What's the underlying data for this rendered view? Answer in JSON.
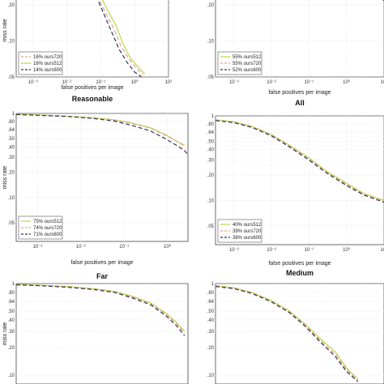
{
  "chart_data": [
    {
      "type": "line",
      "title": "Reasonable",
      "xlabel": "false positives per image",
      "ylabel": "miss rate",
      "xscale": "log",
      "yscale": "log",
      "xlim": [
        0.00032,
        10
      ],
      "ylim": [
        0.05,
        0.3
      ],
      "x_ticks": [
        "10⁻³",
        "10⁻²",
        "10⁻¹",
        "10⁰",
        "10¹"
      ],
      "x_tick_values": [
        0.001,
        0.01,
        0.1,
        1,
        10
      ],
      "y_ticks": [
        ".20",
        ".10",
        ".05"
      ],
      "y_tick_values": [
        0.2,
        0.1,
        0.05
      ],
      "ylabel_visible": true,
      "legend_position": "bottom-left",
      "series": [
        {
          "name": "16% ours720",
          "color": "#e8a090",
          "dash": "5,3",
          "x": [
            0.055,
            0.09,
            0.15,
            0.25,
            0.4,
            0.7,
            1.2,
            1.8
          ],
          "y": [
            0.3,
            0.22,
            0.165,
            0.125,
            0.09,
            0.07,
            0.058,
            0.052
          ]
        },
        {
          "name": "16% ours512",
          "color": "#b8d84a",
          "dash": "none",
          "x": [
            0.06,
            0.1,
            0.16,
            0.28,
            0.45,
            0.75,
            1.3,
            2.0
          ],
          "y": [
            0.3,
            0.235,
            0.18,
            0.135,
            0.095,
            0.072,
            0.06,
            0.053
          ]
        },
        {
          "name": "14% ours600",
          "color": "#333355",
          "dash": "5,3",
          "x": [
            0.055,
            0.085,
            0.14,
            0.22,
            0.35,
            0.6,
            1.0,
            1.6
          ],
          "y": [
            0.3,
            0.215,
            0.155,
            0.115,
            0.085,
            0.066,
            0.055,
            0.05
          ]
        }
      ]
    },
    {
      "type": "line",
      "title": "All",
      "xlabel": "false positives per image",
      "ylabel": "miss rate",
      "xscale": "log",
      "yscale": "log",
      "xlim": [
        0.00032,
        10
      ],
      "ylim": [
        0.05,
        0.3
      ],
      "x_ticks": [
        "10⁻³",
        "10⁻²",
        "10⁻¹",
        "10⁰",
        "10¹"
      ],
      "x_tick_values": [
        0.001,
        0.01,
        0.1,
        1,
        10
      ],
      "y_ticks": [
        ".20",
        ".10",
        ".05"
      ],
      "y_tick_values": [
        0.2,
        0.1,
        0.05
      ],
      "ylabel_visible": false,
      "legend_position": "bottom-left",
      "series": [
        {
          "name": "55% ours512",
          "color": "#b8d84a",
          "dash": "none",
          "x": [
            2.0,
            3.5,
            6.0,
            10.0
          ],
          "y": [
            0.3,
            0.27,
            0.245,
            0.225
          ]
        },
        {
          "name": "55% ours720",
          "color": "#e8a090",
          "dash": "5,3",
          "x": [
            2.1,
            3.6,
            6.2,
            10.0
          ],
          "y": [
            0.3,
            0.268,
            0.242,
            0.222
          ]
        },
        {
          "name": "52% ours600",
          "color": "#333355",
          "dash": "5,3",
          "x": [
            2.2,
            3.8,
            6.5,
            10.0
          ],
          "y": [
            0.3,
            0.265,
            0.238,
            0.218
          ]
        }
      ]
    },
    {
      "type": "line",
      "title": "Far",
      "xlabel": "false positives per image",
      "ylabel": "miss rate",
      "xscale": "log",
      "yscale": "log",
      "xlim": [
        0.00032,
        3
      ],
      "ylim": [
        0.03,
        1.0
      ],
      "x_ticks": [
        "10⁻³",
        "10⁻²",
        "10⁻¹",
        "10⁰"
      ],
      "x_tick_values": [
        0.001,
        0.01,
        0.1,
        1
      ],
      "y_ticks": [
        "1",
        ".80",
        ".64",
        ".50",
        ".40",
        ".30",
        ".20",
        ".10",
        ".05"
      ],
      "y_tick_values": [
        1,
        0.8,
        0.64,
        0.5,
        0.4,
        0.3,
        0.2,
        0.1,
        0.05
      ],
      "ylabel_visible": true,
      "legend_position": "bottom-left",
      "series": [
        {
          "name": "75% ours512",
          "color": "#b8d84a",
          "dash": "none",
          "x": [
            0.00032,
            0.001,
            0.005,
            0.02,
            0.06,
            0.15,
            0.4,
            0.9,
            1.6,
            2.5
          ],
          "y": [
            0.98,
            0.96,
            0.93,
            0.89,
            0.84,
            0.77,
            0.68,
            0.56,
            0.47,
            0.42
          ]
        },
        {
          "name": "74% ours720",
          "color": "#e8a090",
          "dash": "5,3",
          "x": [
            0.00032,
            0.001,
            0.005,
            0.02,
            0.06,
            0.15,
            0.4,
            0.9,
            1.6,
            2.5
          ],
          "y": [
            0.97,
            0.955,
            0.925,
            0.88,
            0.83,
            0.76,
            0.67,
            0.55,
            0.47,
            0.41
          ]
        },
        {
          "name": "71% ours600",
          "color": "#333355",
          "dash": "5,3",
          "x": [
            0.00032,
            0.001,
            0.005,
            0.02,
            0.06,
            0.15,
            0.4,
            0.9,
            1.6,
            2.5,
            3.0
          ],
          "y": [
            0.97,
            0.95,
            0.92,
            0.87,
            0.81,
            0.72,
            0.62,
            0.5,
            0.42,
            0.36,
            0.32
          ]
        }
      ]
    },
    {
      "type": "line",
      "title": "Medium",
      "xlabel": "false positives per image",
      "ylabel": "miss rate",
      "xscale": "log",
      "yscale": "log",
      "xlim": [
        0.00032,
        10
      ],
      "ylim": [
        0.03,
        1.0
      ],
      "x_ticks": [
        "10⁻³",
        "10⁻²",
        "10⁻¹",
        "10⁰",
        "10¹"
      ],
      "x_tick_values": [
        0.001,
        0.01,
        0.1,
        1,
        10
      ],
      "y_ticks": [
        "1",
        ".80",
        ".64",
        ".50",
        ".40",
        ".30",
        ".20",
        ".10",
        ".05"
      ],
      "y_tick_values": [
        1,
        0.8,
        0.64,
        0.5,
        0.4,
        0.3,
        0.2,
        0.1,
        0.05
      ],
      "ylabel_visible": false,
      "legend_position": "bottom-left",
      "series": [
        {
          "name": "40% ours512",
          "color": "#b8d84a",
          "dash": "none",
          "x": [
            0.00032,
            0.001,
            0.003,
            0.01,
            0.03,
            0.1,
            0.3,
            1.0,
            3.0,
            10.0
          ],
          "y": [
            0.9,
            0.85,
            0.75,
            0.6,
            0.45,
            0.32,
            0.22,
            0.16,
            0.12,
            0.1
          ]
        },
        {
          "name": "39% ours720",
          "color": "#e8a090",
          "dash": "5,3",
          "x": [
            0.00032,
            0.001,
            0.003,
            0.01,
            0.03,
            0.1,
            0.3,
            1.0,
            3.0,
            10.0
          ],
          "y": [
            0.89,
            0.84,
            0.74,
            0.59,
            0.44,
            0.31,
            0.215,
            0.155,
            0.118,
            0.098
          ]
        },
        {
          "name": "38% ours600",
          "color": "#333355",
          "dash": "5,3",
          "x": [
            0.00032,
            0.001,
            0.003,
            0.01,
            0.03,
            0.1,
            0.3,
            1.0,
            3.0,
            10.0
          ],
          "y": [
            0.88,
            0.83,
            0.73,
            0.58,
            0.43,
            0.3,
            0.21,
            0.15,
            0.115,
            0.095
          ]
        }
      ]
    },
    {
      "type": "line",
      "title": "",
      "xlabel": "",
      "ylabel": "miss rate",
      "xscale": "log",
      "yscale": "log",
      "xlim": [
        0.00032,
        3
      ],
      "ylim": [
        0.08,
        1.0
      ],
      "x_ticks": [],
      "x_tick_values": [],
      "y_ticks": [
        "1",
        ".80",
        ".64",
        ".50",
        ".40",
        ".30",
        ".20",
        ".10"
      ],
      "y_tick_values": [
        1,
        0.8,
        0.64,
        0.5,
        0.4,
        0.3,
        0.2,
        0.1
      ],
      "ylabel_visible": true,
      "legend_position": "none",
      "series": [
        {
          "name": "ours512",
          "color": "#b8d84a",
          "dash": "none",
          "x": [
            0.00032,
            0.001,
            0.005,
            0.02,
            0.06,
            0.15,
            0.4,
            0.9,
            1.6,
            2.5
          ],
          "y": [
            0.98,
            0.96,
            0.93,
            0.88,
            0.82,
            0.73,
            0.62,
            0.48,
            0.38,
            0.3
          ]
        },
        {
          "name": "ours720",
          "color": "#e8a090",
          "dash": "5,3",
          "x": [
            0.00032,
            0.001,
            0.005,
            0.02,
            0.06,
            0.15,
            0.4,
            0.9,
            1.6,
            2.5
          ],
          "y": [
            0.97,
            0.955,
            0.92,
            0.87,
            0.81,
            0.72,
            0.61,
            0.47,
            0.37,
            0.29
          ]
        },
        {
          "name": "ours600",
          "color": "#333355",
          "dash": "5,3",
          "x": [
            0.00032,
            0.001,
            0.005,
            0.02,
            0.06,
            0.15,
            0.4,
            0.9,
            1.6,
            2.5
          ],
          "y": [
            0.97,
            0.95,
            0.91,
            0.86,
            0.8,
            0.7,
            0.59,
            0.45,
            0.35,
            0.27
          ]
        }
      ]
    },
    {
      "type": "line",
      "title": "",
      "xlabel": "",
      "ylabel": "miss rate",
      "xscale": "log",
      "yscale": "log",
      "xlim": [
        0.00032,
        10
      ],
      "ylim": [
        0.08,
        1.0
      ],
      "x_ticks": [],
      "x_tick_values": [],
      "y_ticks": [
        "1",
        ".80",
        ".64",
        ".50",
        ".40",
        ".30",
        ".20",
        ".10"
      ],
      "y_tick_values": [
        1,
        0.8,
        0.64,
        0.5,
        0.4,
        0.3,
        0.2,
        0.1
      ],
      "ylabel_visible": false,
      "legend_position": "none",
      "series": [
        {
          "name": "ours512",
          "color": "#b8d84a",
          "dash": "none",
          "x": [
            0.00032,
            0.001,
            0.003,
            0.01,
            0.03,
            0.08,
            0.2,
            0.5,
            1.0,
            2.0
          ],
          "y": [
            0.95,
            0.9,
            0.8,
            0.65,
            0.5,
            0.36,
            0.25,
            0.18,
            0.12,
            0.09
          ]
        },
        {
          "name": "ours720",
          "color": "#e8a090",
          "dash": "5,3",
          "x": [
            0.00032,
            0.001,
            0.003,
            0.01,
            0.03,
            0.08,
            0.2,
            0.5,
            1.0,
            2.0
          ],
          "y": [
            0.94,
            0.89,
            0.79,
            0.64,
            0.49,
            0.35,
            0.24,
            0.17,
            0.115,
            0.088
          ]
        },
        {
          "name": "ours600",
          "color": "#333355",
          "dash": "5,3",
          "x": [
            0.00032,
            0.001,
            0.003,
            0.01,
            0.03,
            0.08,
            0.2,
            0.5,
            1.0,
            2.0
          ],
          "y": [
            0.93,
            0.88,
            0.78,
            0.63,
            0.48,
            0.34,
            0.23,
            0.16,
            0.11,
            0.085
          ]
        }
      ]
    }
  ]
}
